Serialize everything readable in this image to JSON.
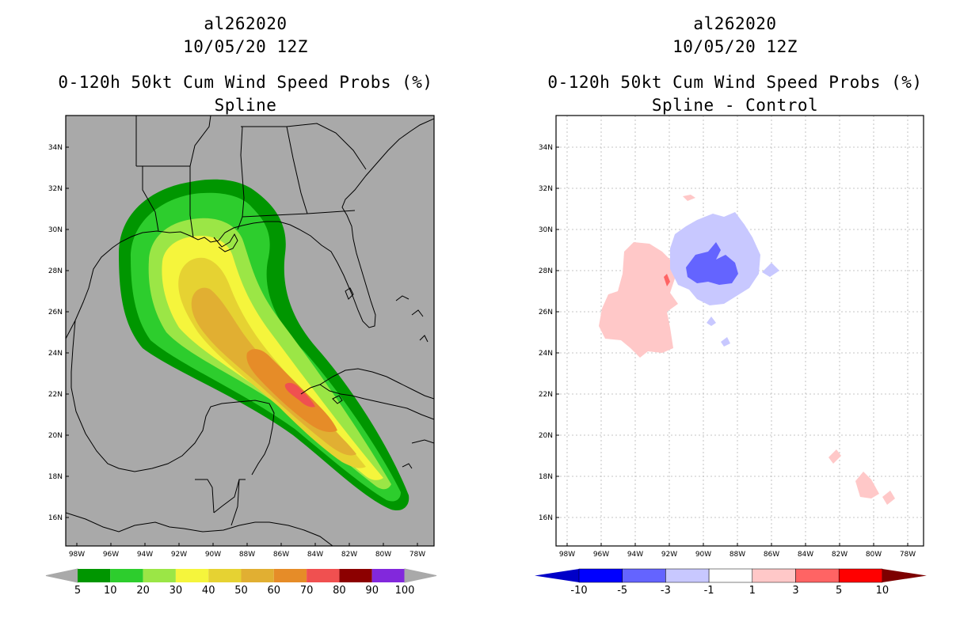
{
  "left_panel": {
    "storm_id": "al262020",
    "datetime": "10/05/20 12Z",
    "product": "0-120h 50kt Cum Wind Speed Probs (%)",
    "subtitle": "Spline",
    "background_color": "#a9a9a9",
    "colorbar": {
      "labels": [
        "5",
        "10",
        "20",
        "30",
        "40",
        "50",
        "60",
        "70",
        "80",
        "90",
        "100"
      ],
      "colors": [
        "#009600",
        "#2dcd2d",
        "#9be646",
        "#f5f53c",
        "#e6d232",
        "#e1af32",
        "#e68c28",
        "#f05050",
        "#8c0000",
        "#8228dc"
      ]
    }
  },
  "right_panel": {
    "storm_id": "al262020",
    "datetime": "10/05/20 12Z",
    "product": "0-120h 50kt Cum Wind Speed Probs (%)",
    "subtitle": "Spline - Control",
    "background_color": "#ffffff",
    "colorbar": {
      "labels": [
        "-10",
        "-5",
        "-3",
        "-1",
        "1",
        "3",
        "5",
        "10"
      ],
      "colors": [
        "#0000c8",
        "#0000ff",
        "#6464ff",
        "#c8c8ff",
        "#ffffff",
        "#ffc8c8",
        "#ff6464",
        "#ff0000",
        "#7d0000"
      ]
    }
  },
  "axes": {
    "lat_labels": [
      "34N",
      "32N",
      "30N",
      "28N",
      "26N",
      "24N",
      "22N",
      "20N",
      "18N",
      "16N"
    ],
    "lon_labels": [
      "98W",
      "96W",
      "94W",
      "92W",
      "90W",
      "88W",
      "86W",
      "84W",
      "82W",
      "80W",
      "78W"
    ]
  },
  "region": "Gulf of Mexico"
}
